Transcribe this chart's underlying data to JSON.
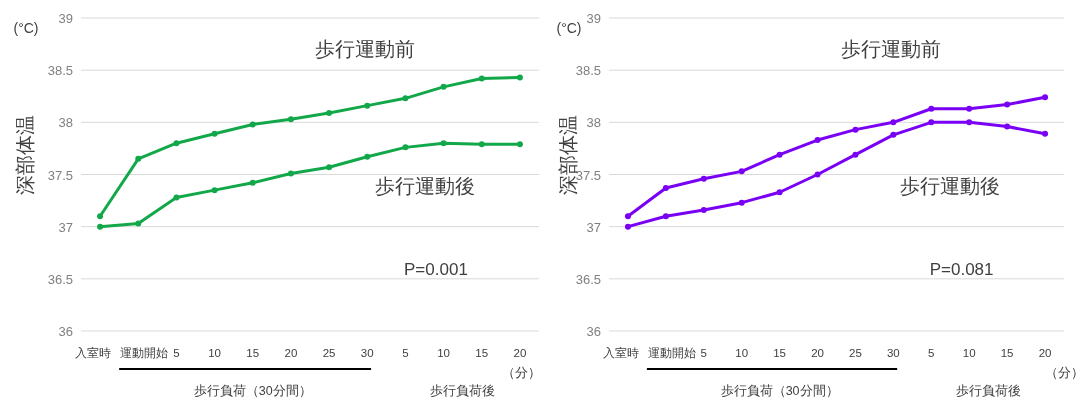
{
  "chart_data": [
    {
      "type": "line",
      "ylabel": "深部体温",
      "categories": [
        "入室時",
        "運動開始",
        "5",
        "10",
        "15",
        "20",
        "25",
        "30",
        "5",
        "10",
        "15",
        "20"
      ],
      "ylim": [
        36,
        39
      ],
      "yticks": [
        36,
        36.5,
        37,
        37.5,
        38,
        38.5,
        39
      ],
      "grid": "y",
      "marker": "circle",
      "series": [
        {
          "name": "歩行運動前",
          "color": "#12a84a",
          "values": [
            37.1,
            37.65,
            37.8,
            37.89,
            37.98,
            38.03,
            38.09,
            38.16,
            38.23,
            38.34,
            38.42,
            38.43
          ]
        },
        {
          "name": "歩行運動後",
          "color": "#12a84a",
          "values": [
            37.0,
            37.03,
            37.28,
            37.35,
            37.42,
            37.51,
            37.57,
            37.67,
            37.76,
            37.8,
            37.79,
            37.79
          ]
        }
      ],
      "annotations": [
        "(°C)",
        "P=0.001",
        "歩行負荷（30分間）",
        "歩行負荷後",
        "（分）"
      ]
    },
    {
      "type": "line",
      "ylabel": "深部体温",
      "categories": [
        "入室時",
        "運動開始",
        "5",
        "10",
        "15",
        "20",
        "25",
        "30",
        "5",
        "10",
        "15",
        "20"
      ],
      "ylim": [
        36,
        39
      ],
      "yticks": [
        36,
        36.5,
        37,
        37.5,
        38,
        38.5,
        39
      ],
      "grid": "y",
      "marker": "circle",
      "series": [
        {
          "name": "歩行運動前",
          "color": "#7a00f5",
          "values": [
            37.1,
            37.37,
            37.46,
            37.53,
            37.69,
            37.83,
            37.93,
            38.0,
            38.13,
            38.13,
            38.17,
            38.24
          ]
        },
        {
          "name": "歩行運動後",
          "color": "#7a00f5",
          "values": [
            37.0,
            37.1,
            37.16,
            37.23,
            37.33,
            37.5,
            37.69,
            37.88,
            38.0,
            38.0,
            37.96,
            37.89
          ]
        }
      ],
      "annotations": [
        "(°C)",
        "P=0.081",
        "歩行負荷（30分間）",
        "歩行負荷後",
        "（分）"
      ]
    }
  ]
}
